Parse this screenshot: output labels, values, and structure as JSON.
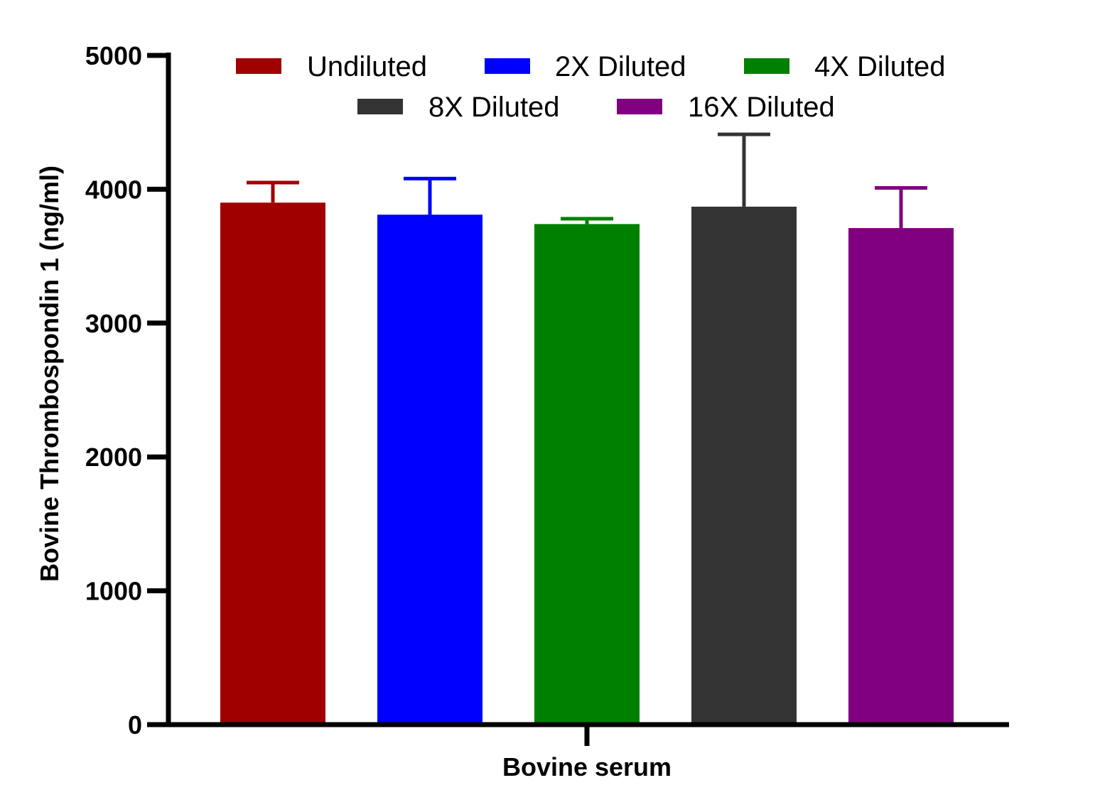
{
  "chart_data": {
    "type": "bar",
    "categories": [
      "Bovine serum"
    ],
    "xlabel": "Bovine serum",
    "ylabel": "Bovine Thrombospondin 1 (ng/ml)",
    "ylim": [
      0,
      5000
    ],
    "yticks": [
      "0",
      "1000",
      "2000",
      "3000",
      "4000",
      "5000"
    ],
    "grid": false,
    "legend_position": "top",
    "series": [
      {
        "name": "Undiluted",
        "values": [
          3900
        ],
        "error": [
          150
        ],
        "color": "#A00000"
      },
      {
        "name": "2X Diluted",
        "values": [
          3810
        ],
        "error": [
          270
        ],
        "color": "#0000FF"
      },
      {
        "name": "4X Diluted",
        "values": [
          3740
        ],
        "error": [
          40
        ],
        "color": "#008000"
      },
      {
        "name": "8X Diluted",
        "values": [
          3870
        ],
        "error": [
          540
        ],
        "color": "#333333"
      },
      {
        "name": "16X Diluted",
        "values": [
          3710
        ],
        "error": [
          300
        ],
        "color": "#800080"
      }
    ]
  }
}
